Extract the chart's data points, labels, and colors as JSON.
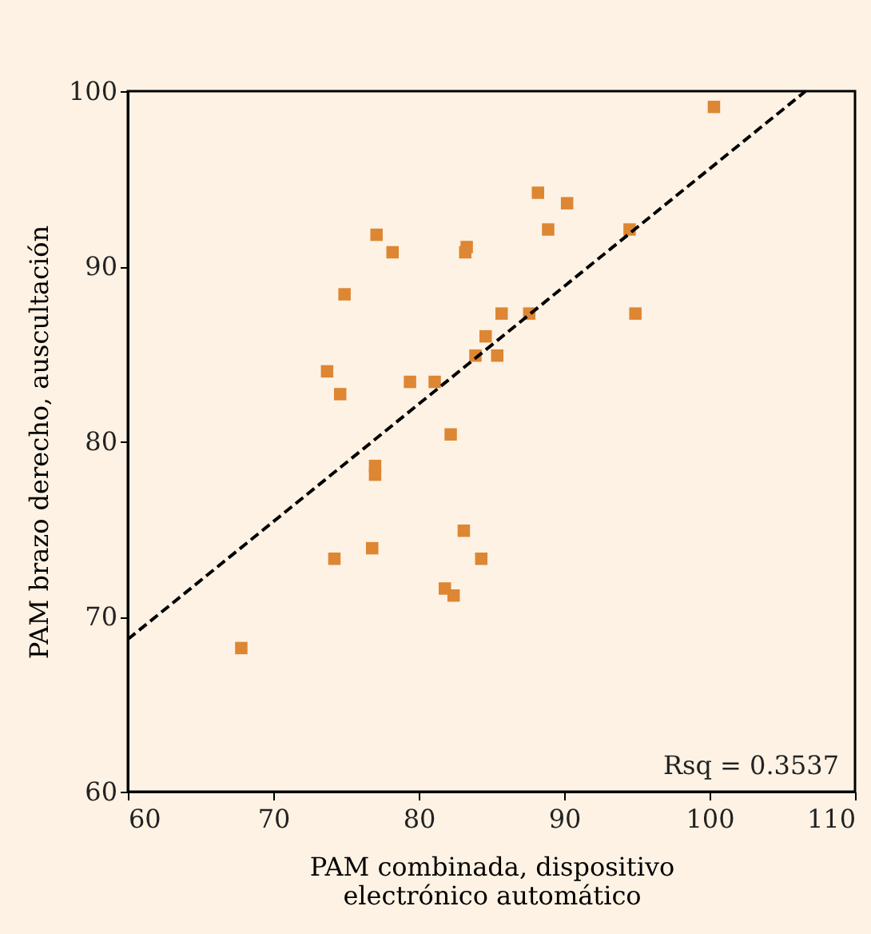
{
  "chart_data": {
    "type": "scatter",
    "xlabel": "PAM combinada, dispositivo electrónico automático",
    "ylabel": "PAM brazo derecho, auscultación",
    "xlim": [
      60,
      110
    ],
    "xticks": [
      60,
      70,
      80,
      90,
      100,
      110
    ],
    "ylim": [
      60,
      100
    ],
    "yticks": [
      60,
      70,
      80,
      90,
      100
    ],
    "grid": false,
    "marker": "square",
    "annotations": [
      "Rsq = 0.3537"
    ],
    "series": [
      {
        "color": "#dd8633",
        "x": [
          100.3,
          88.2,
          90.2,
          77.1,
          78.2,
          83.3,
          83.2,
          88.9,
          94.5,
          74.9,
          85.7,
          87.6,
          94.9,
          84.6,
          83.9,
          85.4,
          73.7,
          74.6,
          79.4,
          81.1,
          82.2,
          77.0,
          77.0,
          83.1,
          74.2,
          76.8,
          84.3,
          81.8,
          82.4,
          67.8
        ],
        "values": [
          99.1,
          94.2,
          93.6,
          91.8,
          90.8,
          91.1,
          90.8,
          92.1,
          92.1,
          88.4,
          87.3,
          87.3,
          87.3,
          86.0,
          84.9,
          84.9,
          84.0,
          82.7,
          83.4,
          83.4,
          80.4,
          78.6,
          78.1,
          74.9,
          73.3,
          73.9,
          73.3,
          71.6,
          71.2,
          68.2
        ]
      },
      {
        "type": "line",
        "color": "#000000",
        "line_style": "dashed",
        "marker": "none",
        "x": [
          60,
          106.6
        ],
        "values": [
          68.7,
          100
        ]
      }
    ]
  }
}
